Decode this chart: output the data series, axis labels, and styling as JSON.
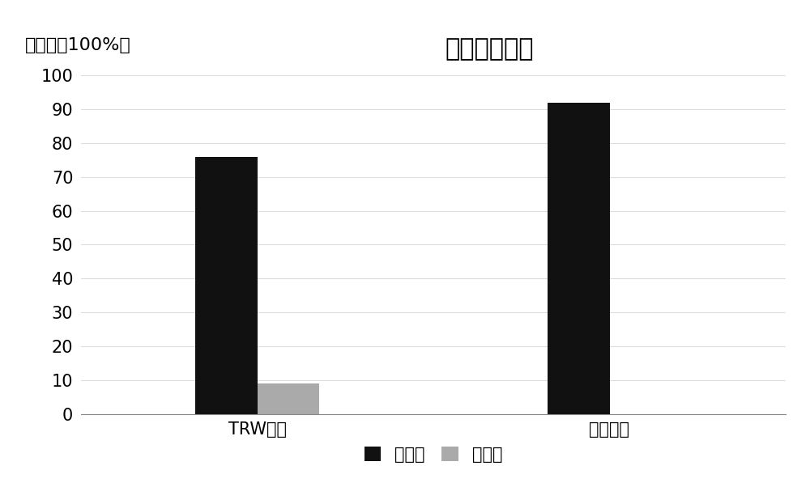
{
  "title": "实验结果对比",
  "ylabel": "百分比（100%）",
  "categories": [
    "TRW算法",
    "优化算法"
  ],
  "series": {
    "检测率": [
      76,
      92
    ],
    "误检率": [
      9,
      0
    ]
  },
  "bar_colors": {
    "检测率": "#111111",
    "误检率": "#aaaaaa"
  },
  "ylim": [
    0,
    105
  ],
  "yticks": [
    0,
    10,
    20,
    30,
    40,
    50,
    60,
    70,
    80,
    90,
    100
  ],
  "background_color": "#ffffff",
  "grid_color": "#dddddd",
  "title_fontsize": 22,
  "label_fontsize": 16,
  "tick_fontsize": 15,
  "legend_fontsize": 15,
  "bar_width": 0.35,
  "group_centers": [
    1.0,
    3.0
  ]
}
